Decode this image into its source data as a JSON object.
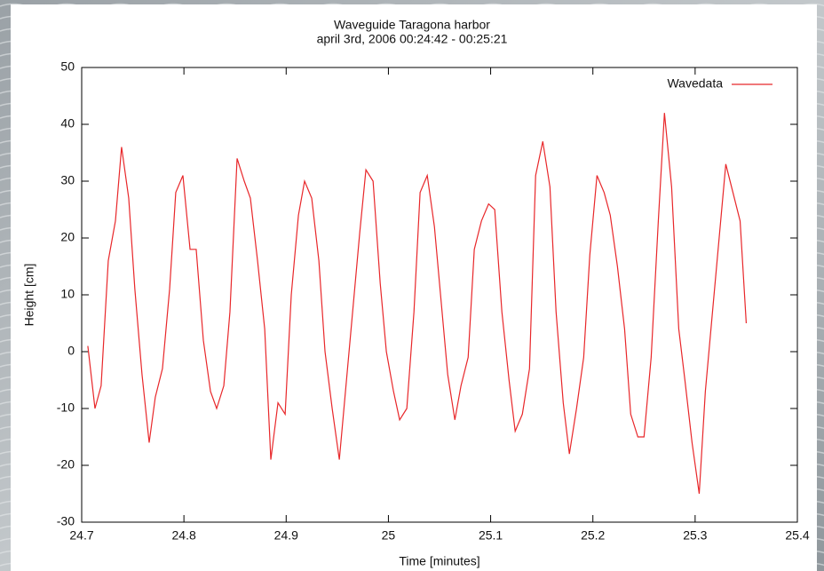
{
  "chart_data": {
    "type": "line",
    "title": "Waveguide Taragona harbor",
    "subtitle": "april 3rd, 2006 00:24:42 - 00:25:21",
    "x_label": "Time [minutes]",
    "y_label": "Height [cm]",
    "x": [
      24.706,
      24.713,
      24.719,
      24.726,
      24.733,
      24.739,
      24.746,
      24.752,
      24.759,
      24.766,
      24.772,
      24.779,
      24.786,
      24.792,
      24.799,
      24.806,
      24.812,
      24.819,
      24.826,
      24.832,
      24.839,
      24.845,
      24.852,
      24.859,
      24.865,
      24.872,
      24.879,
      24.885,
      24.892,
      24.899,
      24.905,
      24.912,
      24.918,
      24.925,
      24.932,
      24.938,
      24.945,
      24.952,
      24.958,
      24.965,
      24.972,
      24.978,
      24.985,
      24.992,
      24.998,
      25.005,
      25.011,
      25.018,
      25.025,
      25.031,
      25.038,
      25.045,
      25.051,
      25.058,
      25.065,
      25.071,
      25.078,
      25.084,
      25.091,
      25.098,
      25.104,
      25.111,
      25.118,
      25.124,
      25.131,
      25.138,
      25.144,
      25.151,
      25.158,
      25.164,
      25.171,
      25.177,
      25.184,
      25.191,
      25.197,
      25.204,
      25.211,
      25.217,
      25.224,
      25.231,
      25.237,
      25.244,
      25.25,
      25.257,
      25.264,
      25.27,
      25.277,
      25.284,
      25.29,
      25.297,
      25.304,
      25.31,
      25.317,
      25.324,
      25.33,
      25.337,
      25.344,
      25.35
    ],
    "series": [
      {
        "name": "Wavedata",
        "color": "#e8272a",
        "values": [
          1,
          -10,
          -6,
          16,
          23,
          36,
          27,
          11,
          -4,
          -16,
          -8,
          -3,
          11,
          28,
          31,
          18,
          18,
          2,
          -7,
          -10,
          -6,
          7,
          34,
          30,
          27,
          16,
          4,
          -19,
          -9,
          -11,
          10,
          24,
          30,
          27,
          16,
          0,
          -10,
          -19,
          -7,
          7,
          21,
          32,
          30,
          12,
          0,
          -7,
          -12,
          -10,
          7,
          28,
          31,
          22,
          10,
          -4,
          -12,
          -6,
          -1,
          18,
          23,
          26,
          25,
          7,
          -5,
          -14,
          -11,
          -3,
          31,
          37,
          29,
          7,
          -9,
          -18,
          -10,
          -1,
          17,
          31,
          28,
          24,
          15,
          4,
          -11,
          -15,
          -15,
          -1,
          23,
          42,
          29,
          4,
          -5,
          -16,
          -25,
          -7,
          7,
          21,
          33,
          28,
          23,
          5
        ]
      }
    ],
    "xlim": [
      24.7,
      25.4
    ],
    "xticks": [
      24.7,
      24.8,
      24.9,
      25,
      25.1,
      25.2,
      25.3,
      25.4
    ],
    "ylim": [
      -30,
      50
    ],
    "yticks": [
      -30,
      -20,
      -10,
      0,
      10,
      20,
      30,
      40,
      50
    ],
    "legend": "upper right"
  }
}
